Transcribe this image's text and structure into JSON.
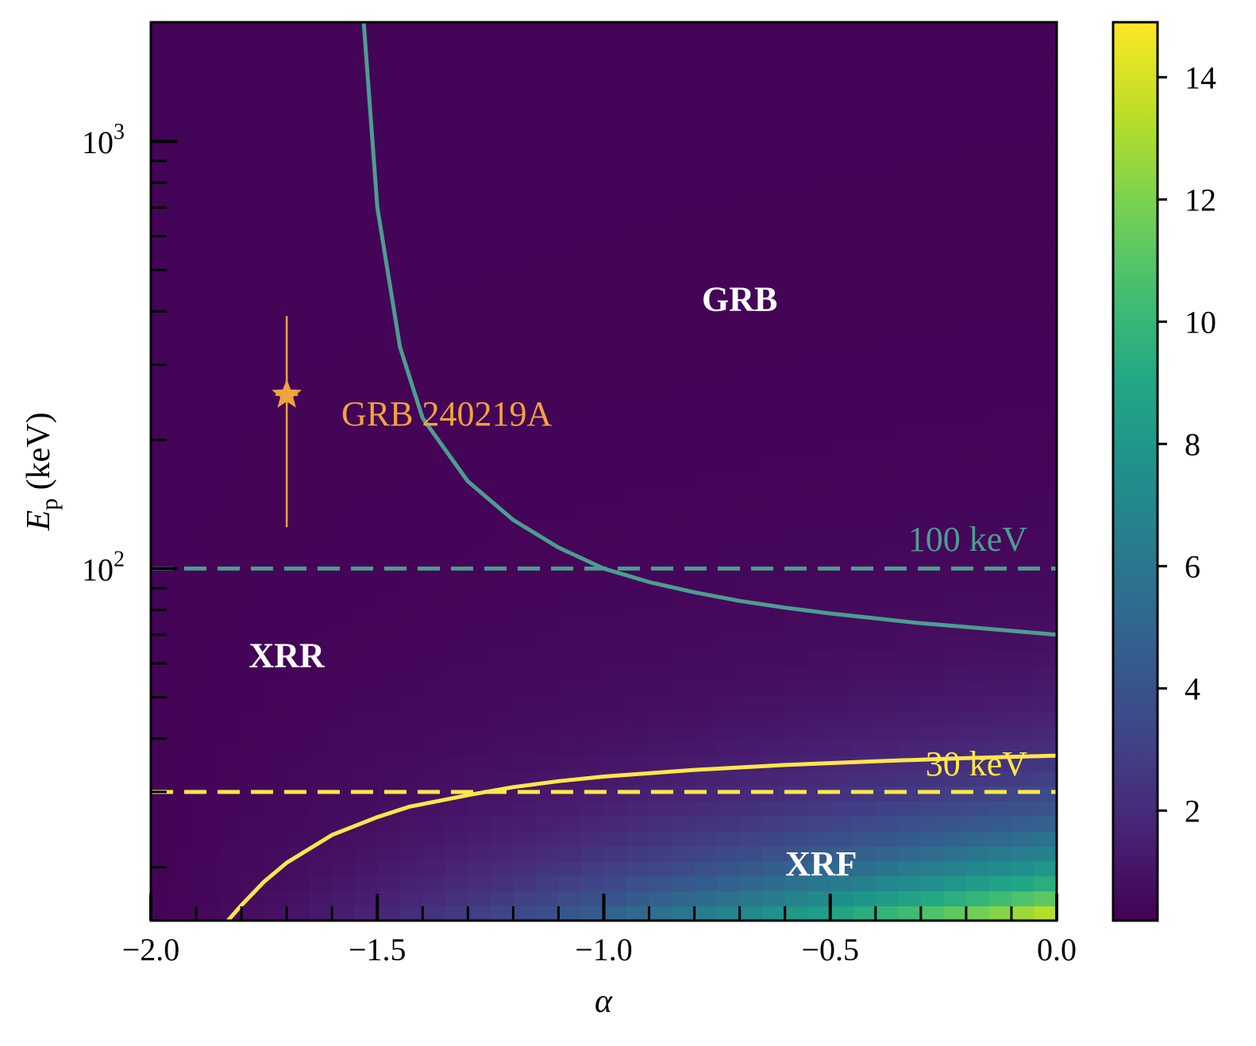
{
  "chart_data": {
    "type": "heatmap",
    "title": "",
    "xlabel": "α",
    "ylabel_main": "E",
    "ylabel_sub": "p",
    "ylabel_unit": " (keV)",
    "xlim": [
      -2.0,
      0.0
    ],
    "ylim": [
      15,
      1900
    ],
    "yscale": "log",
    "x_ticks": [
      {
        "value": -2.0,
        "label": "−2.0"
      },
      {
        "value": -1.5,
        "label": "−1.5"
      },
      {
        "value": -1.0,
        "label": "−1.0"
      },
      {
        "value": -0.5,
        "label": "−0.5"
      },
      {
        "value": 0.0,
        "label": "0.0"
      }
    ],
    "y_ticks": [
      {
        "value": 100,
        "base": "10",
        "exp": "2"
      },
      {
        "value": 1000,
        "base": "10",
        "exp": "3"
      }
    ],
    "colorbar": {
      "colormap": "viridis",
      "range": [
        0.2,
        14.9
      ],
      "ticks": [
        {
          "value": 2,
          "label": "2"
        },
        {
          "value": 4,
          "label": "4"
        },
        {
          "value": 6,
          "label": "6"
        },
        {
          "value": 8,
          "label": "8"
        },
        {
          "value": 10,
          "label": "10"
        },
        {
          "value": 12,
          "label": "12"
        },
        {
          "value": 14,
          "label": "14"
        }
      ]
    },
    "curves": [
      {
        "id": "grb-xrr-boundary",
        "color": "#4c9d91",
        "style": "solid",
        "points": [
          [
            -1.53,
            1900
          ],
          [
            -1.5,
            700
          ],
          [
            -1.45,
            330
          ],
          [
            -1.4,
            225
          ],
          [
            -1.3,
            160
          ],
          [
            -1.2,
            130
          ],
          [
            -1.1,
            112
          ],
          [
            -1.0,
            100
          ],
          [
            -0.9,
            93
          ],
          [
            -0.8,
            88
          ],
          [
            -0.7,
            84
          ],
          [
            -0.6,
            81
          ],
          [
            -0.5,
            78.5
          ],
          [
            -0.4,
            76.5
          ],
          [
            -0.3,
            74.5
          ],
          [
            -0.2,
            73
          ],
          [
            -0.1,
            71.5
          ],
          [
            0.0,
            70
          ]
        ]
      },
      {
        "id": "xrr-xrf-boundary",
        "color": "#fde74a",
        "style": "solid",
        "points": [
          [
            -1.83,
            15
          ],
          [
            -1.8,
            16.3
          ],
          [
            -1.75,
            18.5
          ],
          [
            -1.7,
            20.5
          ],
          [
            -1.6,
            23.8
          ],
          [
            -1.5,
            26.2
          ],
          [
            -1.43,
            27.7
          ],
          [
            -1.3,
            29.5
          ],
          [
            -1.2,
            30.8
          ],
          [
            -1.1,
            31.8
          ],
          [
            -1.0,
            32.6
          ],
          [
            -0.8,
            33.8
          ],
          [
            -0.6,
            34.7
          ],
          [
            -0.4,
            35.4
          ],
          [
            -0.2,
            36.0
          ],
          [
            0.0,
            36.5
          ]
        ]
      }
    ],
    "hlines": [
      {
        "id": "ep-100",
        "y": 100,
        "color": "#4c9d91",
        "style": "dashed",
        "label": "100 keV"
      },
      {
        "id": "ep-30",
        "y": 30,
        "color": "#fde74a",
        "style": "dashed",
        "label": "30 keV"
      }
    ],
    "point": {
      "label": "GRB 240219A",
      "x": -1.7,
      "y": 255,
      "y_err_low": 125,
      "y_err_high": 390,
      "x_err": 0.025,
      "color": "#f0a340",
      "marker": "star"
    },
    "region_labels": [
      {
        "text": "GRB",
        "x": -0.7,
        "y": 430
      },
      {
        "text": "XRR",
        "x": -1.7,
        "y": 63
      },
      {
        "text": "XRF",
        "x": -0.52,
        "y": 20.5
      }
    ],
    "heatmap_model": "value ≈ 0.35 + 14.4 · ((α + 2)/2)^1.6 · exp(−2.2 · (ln Ep − ln 15)); colored with viridis over the colorbar range"
  }
}
